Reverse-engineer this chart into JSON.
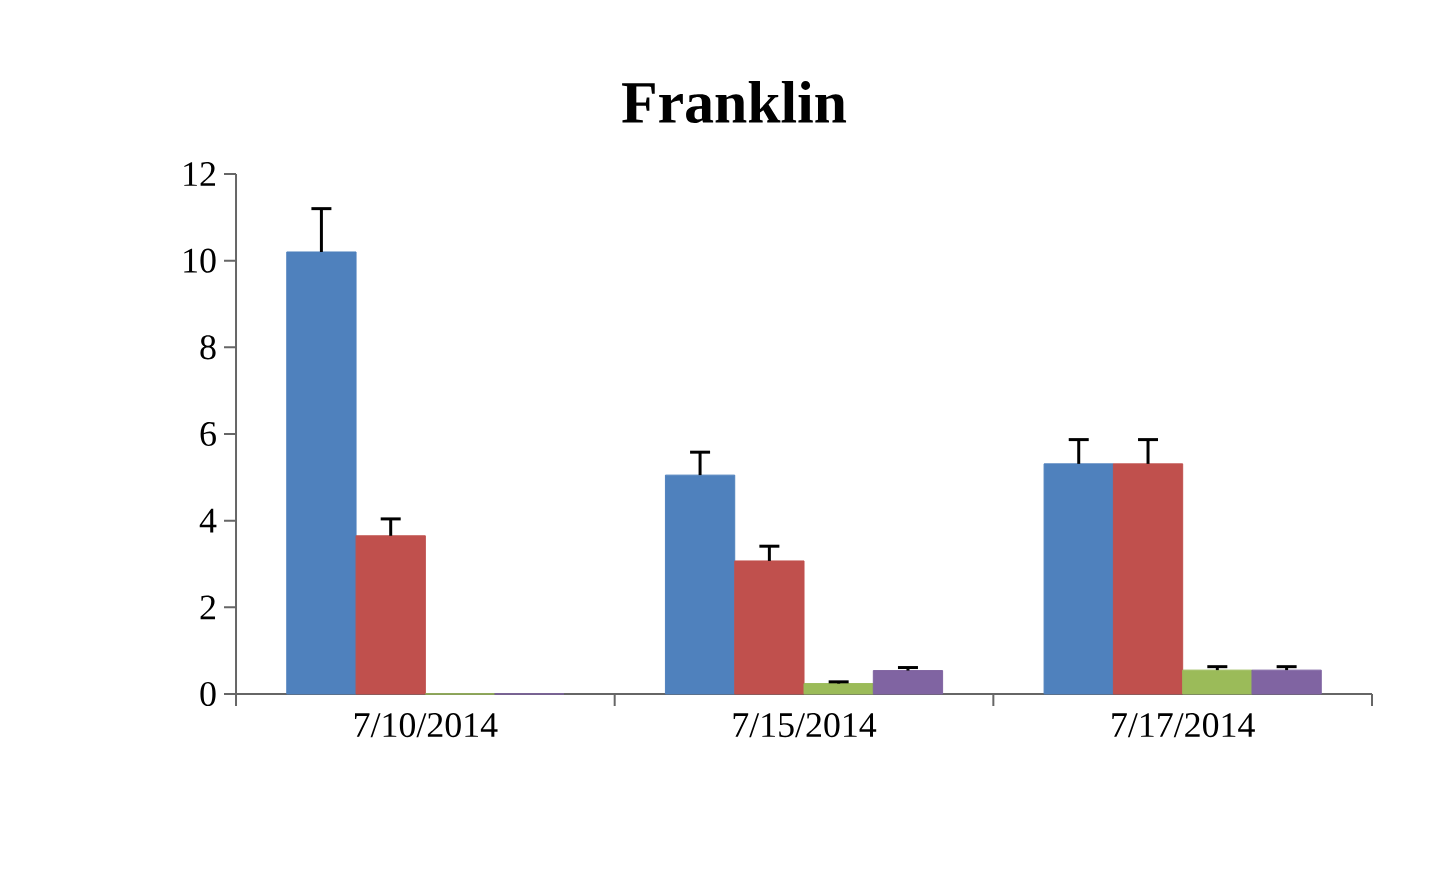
{
  "chart_data": {
    "type": "bar",
    "title": "Franklin",
    "categories": [
      "7/10/2014",
      "7/15/2014",
      "7/17/2014"
    ],
    "series": [
      {
        "color": "#4f81bd",
        "values": [
          10.2,
          5.05,
          5.31
        ],
        "errors": [
          [
            10.2,
            11.2
          ],
          [
            5.05,
            5.58
          ],
          [
            5.31,
            5.87
          ]
        ]
      },
      {
        "color": "#c0504d",
        "values": [
          3.65,
          3.07,
          5.31
        ],
        "errors": [
          [
            3.65,
            4.04
          ],
          [
            3.07,
            3.41
          ],
          [
            5.31,
            5.87
          ]
        ]
      },
      {
        "color": "#9bbb59",
        "values": [
          0,
          0.24,
          0.55
        ],
        "errors": [
          null,
          [
            0.24,
            0.28
          ],
          [
            0.55,
            0.63
          ]
        ]
      },
      {
        "color": "#8064a2",
        "values": [
          0,
          0.54,
          0.55
        ],
        "errors": [
          null,
          [
            0.54,
            0.61
          ],
          [
            0.55,
            0.63
          ]
        ]
      }
    ],
    "ylim": [
      0,
      12
    ],
    "yticks": [
      0,
      2,
      4,
      6,
      8,
      10,
      12
    ]
  }
}
